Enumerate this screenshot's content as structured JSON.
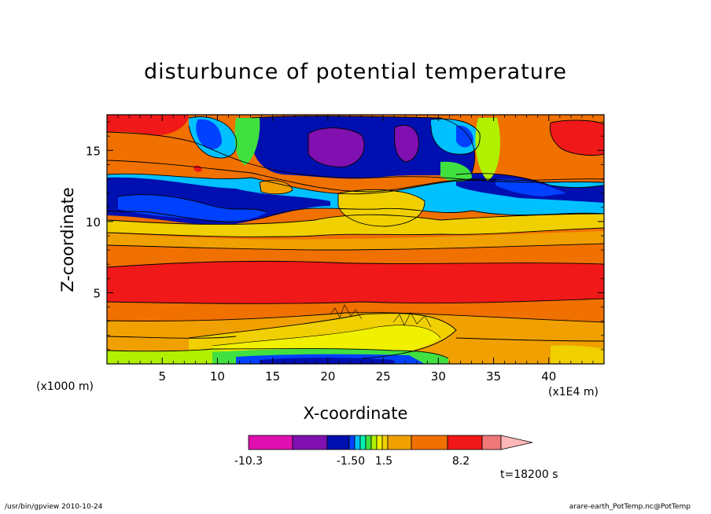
{
  "chart_data": {
    "type": "heatmap",
    "title": "disturbunce of potential temperature",
    "xlabel": "X-coordinate",
    "ylabel": "Z-coordinate",
    "x_unit_label": "(x1000 m)",
    "x_unit_label_2": "(x1E4 m)",
    "xlim": [
      0,
      45
    ],
    "ylim": [
      0,
      17.5
    ],
    "x_ticks": [
      5,
      10,
      15,
      20,
      25,
      30,
      35,
      40
    ],
    "y_ticks": [
      5,
      10,
      15
    ],
    "colorbar": {
      "labels": [
        "-10.3",
        "-1.50",
        "1.5",
        "8.2"
      ],
      "colors": [
        "#e010b0",
        "#8010b0",
        "#0010b0",
        "#0040ff",
        "#00c0ff",
        "#00f0b0",
        "#40e040",
        "#b0f000",
        "#f0f000",
        "#f0d000",
        "#f0a000",
        "#f07000",
        "#f01818",
        "#f07878",
        "#ffb8b8"
      ]
    },
    "time_label": "t=18200 s",
    "footer_left": "/usr/bin/gpview   2010-10-24",
    "footer_right": "arare-earth_PotTemp.nc@PotTemp"
  }
}
